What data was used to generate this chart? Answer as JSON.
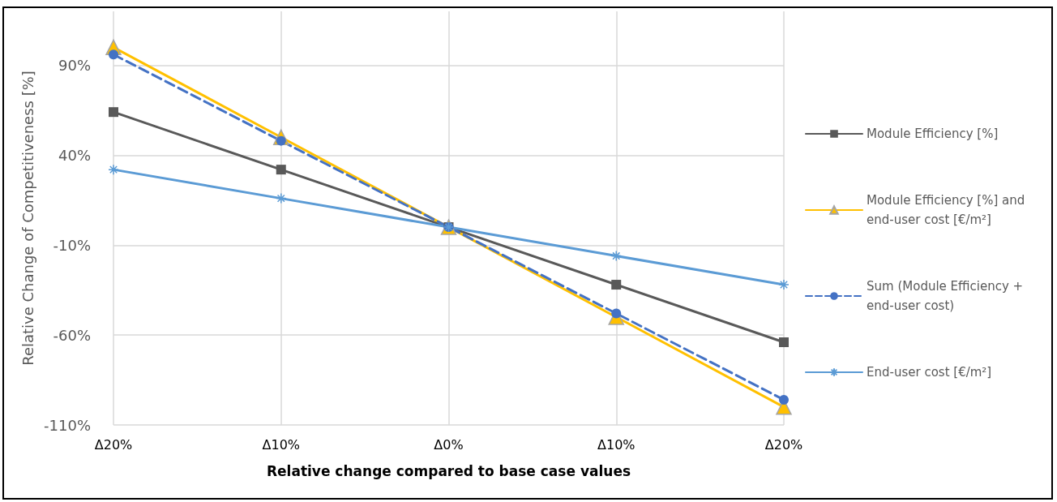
{
  "chart_data": {
    "type": "line",
    "xlabel": "Relative change compared to base case values",
    "ylabel": "Relative Change of Competitiveness [%]",
    "categories": [
      "Δ20%",
      "Δ10%",
      "Δ0%",
      "Δ10%",
      "Δ20%"
    ],
    "ylim": [
      -110,
      120
    ],
    "yticks": [
      {
        "value": -110,
        "label": "-110%"
      },
      {
        "value": -60,
        "label": "-60%"
      },
      {
        "value": -10,
        "label": "-10%"
      },
      {
        "value": 40,
        "label": "40%"
      },
      {
        "value": 90,
        "label": "90%"
      }
    ],
    "grid": true,
    "legend": "right",
    "series": [
      {
        "name": "Module Efficiency [%]",
        "color": "#595959",
        "marker": "square",
        "line_style": "solid",
        "values": [
          64,
          32,
          0,
          -32,
          -64
        ]
      },
      {
        "name": "Module Efficiency [%] and end-user cost [€/m²]",
        "color": "#ffc000",
        "marker": "triangle",
        "line_style": "solid",
        "values": [
          100,
          50,
          0,
          -50,
          -100
        ]
      },
      {
        "name": "Sum (Module Efficiency + end-user cost)",
        "color": "#4472c4",
        "marker": "circle",
        "line_style": "dashed",
        "values": [
          96,
          48,
          0,
          -48,
          -96
        ]
      },
      {
        "name": "End-user cost [€/m²]",
        "color": "#5b9bd5",
        "marker": "cross",
        "line_style": "solid",
        "values": [
          32,
          16,
          0,
          -16,
          -32
        ]
      }
    ]
  }
}
